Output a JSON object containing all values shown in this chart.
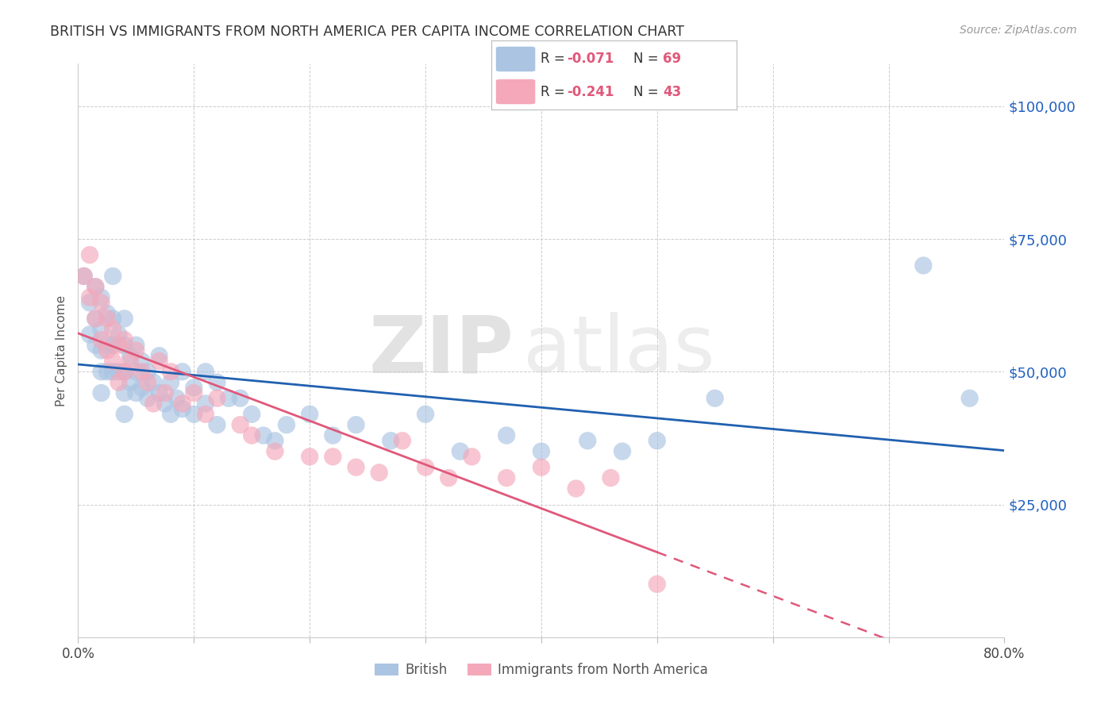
{
  "title": "BRITISH VS IMMIGRANTS FROM NORTH AMERICA PER CAPITA INCOME CORRELATION CHART",
  "source": "Source: ZipAtlas.com",
  "ylabel": "Per Capita Income",
  "legend_british": "British",
  "legend_immigrants": "Immigrants from North America",
  "R_british": -0.071,
  "N_british": 69,
  "R_immigrants": -0.241,
  "N_immigrants": 43,
  "british_color": "#aac4e2",
  "immigrants_color": "#f4a8ba",
  "british_line_color": "#2060b0",
  "immigrants_line_color": "#e0587a",
  "ytick_labels": [
    "$25,000",
    "$50,000",
    "$75,000",
    "$100,000"
  ],
  "ytick_values": [
    25000,
    50000,
    75000,
    100000
  ],
  "ylim": [
    0,
    108000
  ],
  "xlim": [
    0.0,
    0.8
  ],
  "watermark_zip": "ZIP",
  "watermark_atlas": "atlas",
  "background_color": "#ffffff",
  "grid_color": "#cccccc",
  "title_color": "#333333",
  "axis_label_color": "#555555",
  "ytick_color": "#2060c0",
  "british_x": [
    0.005,
    0.01,
    0.01,
    0.015,
    0.015,
    0.015,
    0.02,
    0.02,
    0.02,
    0.02,
    0.02,
    0.025,
    0.025,
    0.025,
    0.03,
    0.03,
    0.03,
    0.03,
    0.035,
    0.035,
    0.04,
    0.04,
    0.04,
    0.04,
    0.04,
    0.045,
    0.045,
    0.05,
    0.05,
    0.05,
    0.055,
    0.055,
    0.06,
    0.06,
    0.065,
    0.07,
    0.07,
    0.075,
    0.08,
    0.08,
    0.085,
    0.09,
    0.09,
    0.1,
    0.1,
    0.11,
    0.11,
    0.12,
    0.12,
    0.13,
    0.14,
    0.15,
    0.16,
    0.17,
    0.18,
    0.2,
    0.22,
    0.24,
    0.27,
    0.3,
    0.33,
    0.37,
    0.4,
    0.44,
    0.47,
    0.5,
    0.55,
    0.73,
    0.77
  ],
  "british_y": [
    68000,
    63000,
    57000,
    66000,
    60000,
    55000,
    64000,
    58000,
    54000,
    50000,
    46000,
    61000,
    55000,
    50000,
    68000,
    60000,
    55000,
    50000,
    57000,
    50000,
    60000,
    55000,
    50000,
    46000,
    42000,
    53000,
    48000,
    55000,
    50000,
    46000,
    52000,
    47000,
    50000,
    45000,
    48000,
    53000,
    46000,
    44000,
    48000,
    42000,
    45000,
    50000,
    43000,
    47000,
    42000,
    50000,
    44000,
    48000,
    40000,
    45000,
    45000,
    42000,
    38000,
    37000,
    40000,
    42000,
    38000,
    40000,
    37000,
    42000,
    35000,
    38000,
    35000,
    37000,
    35000,
    37000,
    45000,
    70000,
    45000
  ],
  "immigrants_x": [
    0.005,
    0.01,
    0.01,
    0.015,
    0.015,
    0.02,
    0.02,
    0.025,
    0.025,
    0.03,
    0.03,
    0.035,
    0.035,
    0.04,
    0.04,
    0.045,
    0.05,
    0.055,
    0.06,
    0.065,
    0.07,
    0.075,
    0.08,
    0.09,
    0.1,
    0.11,
    0.12,
    0.14,
    0.15,
    0.17,
    0.2,
    0.22,
    0.24,
    0.26,
    0.28,
    0.3,
    0.32,
    0.34,
    0.37,
    0.4,
    0.43,
    0.46,
    0.5
  ],
  "immigrants_y": [
    68000,
    72000,
    64000,
    66000,
    60000,
    63000,
    56000,
    60000,
    54000,
    58000,
    52000,
    55000,
    48000,
    56000,
    50000,
    52000,
    54000,
    50000,
    48000,
    44000,
    52000,
    46000,
    50000,
    44000,
    46000,
    42000,
    45000,
    40000,
    38000,
    35000,
    34000,
    34000,
    32000,
    31000,
    37000,
    32000,
    30000,
    34000,
    30000,
    32000,
    28000,
    30000,
    10000
  ]
}
